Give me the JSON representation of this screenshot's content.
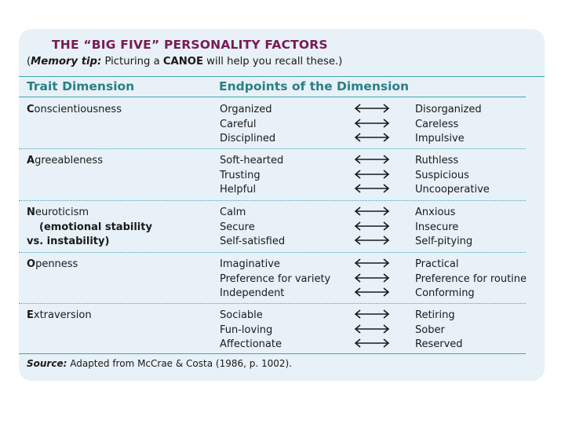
{
  "title": "THE “BIG FIVE” PERSONALITY FACTORS",
  "memory_tip": {
    "open_paren": "(",
    "label": "Memory tip:",
    "text_before": " Picturing a ",
    "acronym": "CANOE",
    "text_after": " will help you recall these.)"
  },
  "headers": {
    "trait": "Trait Dimension",
    "endpoints": "Endpoints of the Dimension"
  },
  "factors": [
    {
      "initial": "C",
      "rest": "onscientiousness",
      "sub": [],
      "left": [
        "Organized",
        "Careful",
        "Disciplined"
      ],
      "right": [
        "Disorganized",
        "Careless",
        "Impulsive"
      ]
    },
    {
      "initial": "A",
      "rest": "greeableness",
      "sub": [],
      "left": [
        "Soft-hearted",
        "Trusting",
        "Helpful"
      ],
      "right": [
        "Ruthless",
        "Suspicious",
        "Uncooperative"
      ]
    },
    {
      "initial": "N",
      "rest": "euroticism",
      "sub": [
        "(emotional stability",
        "vs. instability)"
      ],
      "left": [
        "Calm",
        "Secure",
        "Self-satisfied"
      ],
      "right": [
        "Anxious",
        "Insecure",
        "Self-pitying"
      ]
    },
    {
      "initial": "O",
      "rest": "penness",
      "sub": [],
      "left": [
        "Imaginative",
        "Preference for variety",
        "Independent"
      ],
      "right": [
        "Practical",
        "Preference for routine",
        "Conforming"
      ]
    },
    {
      "initial": "E",
      "rest": "xtraversion",
      "sub": [],
      "left": [
        "Sociable",
        "Fun-loving",
        "Affectionate"
      ],
      "right": [
        "Retiring",
        "Sober",
        "Reserved"
      ]
    }
  ],
  "arrow_icon": "double-headed-arrow-icon",
  "source": {
    "label": "Source:",
    "text": " Adapted from McCrae & Costa (1986, p. 1002)."
  },
  "colors": {
    "title": "#7a1a55",
    "header": "#2a7f88",
    "rule": "#3fa8b0",
    "card": "#e7f1f7"
  }
}
